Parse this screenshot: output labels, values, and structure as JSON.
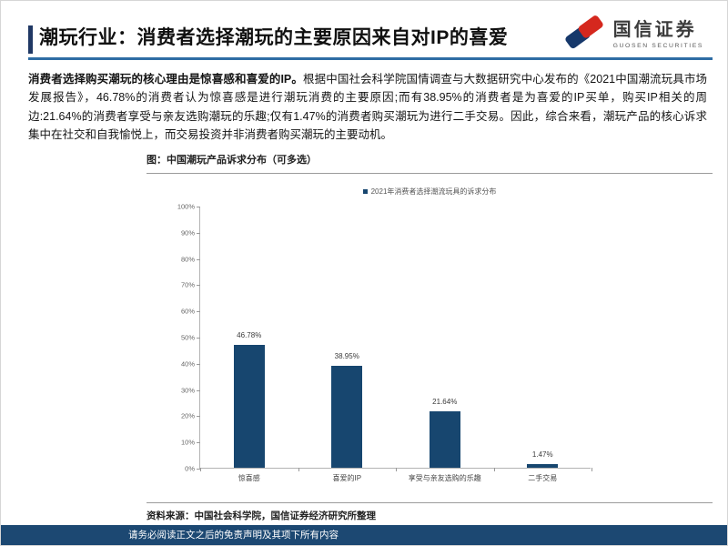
{
  "page": {
    "title": "潮玩行业：消费者选择潮玩的主要原因来自对IP的喜爱",
    "footer_disclaimer": "请务必阅读正文之后的免责声明及其项下所有内容"
  },
  "logo": {
    "name_cn": "国信证券",
    "name_en": "GUOSEN SECURITIES"
  },
  "paragraph": {
    "lead_bold": "消费者选择购买潮玩的核心理由是惊喜感和喜爱的IP。",
    "rest": "根据中国社会科学院国情调查与大数据研究中心发布的《2021中国潮流玩具市场发展报告》，46.78%的消费者认为惊喜感是进行潮玩消费的主要原因;而有38.95%的消费者是为喜爱的IP买单，购买IP相关的周边:21.64%的消费者享受与亲友选购潮玩的乐趣;仅有1.47%的消费者购买潮玩为进行二手交易。因此，综合来看，潮玩产品的核心诉求集中在社交和自我愉悦上，而交易投资并非消费者购买潮玩的主要动机。"
  },
  "figure": {
    "caption": "图：中国潮玩产品诉求分布（可多选）",
    "source": "资料来源：中国社会科学院，国信证券经济研究所整理"
  },
  "chart_data": {
    "type": "bar",
    "title": "2021年消费者选择潮流玩具的诉求分布",
    "legend": [
      "2021年消费者选择潮流玩具的诉求分布"
    ],
    "legend_position": "top",
    "categories": [
      "惊喜感",
      "喜爱的IP",
      "享受与亲友选购的乐趣",
      "二手交易"
    ],
    "values": [
      46.78,
      38.95,
      21.64,
      1.47
    ],
    "value_labels": [
      "46.78%",
      "38.95%",
      "21.64%",
      "1.47%"
    ],
    "xlabel": "",
    "ylabel": "",
    "ylim": [
      0,
      100
    ],
    "ytick_step": 10,
    "ytick_suffix": "%",
    "grid": false,
    "bar_color": "#17466F"
  },
  "colors": {
    "accent_bar": "#203864",
    "title_underline": "#2E6DA4",
    "bar": "#17466F",
    "footer_bg": "#1C4872",
    "logo_red": "#D5281E",
    "logo_blue": "#16386B"
  }
}
